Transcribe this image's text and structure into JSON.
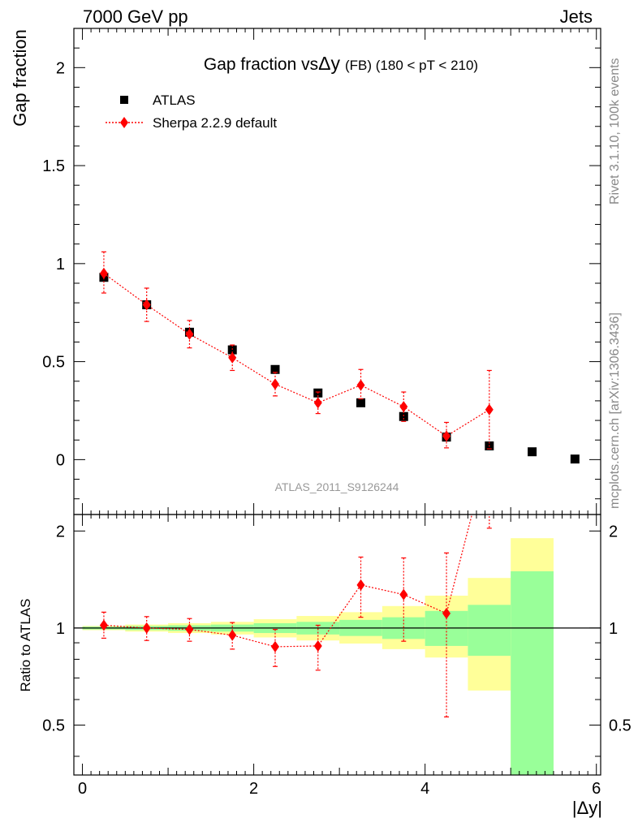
{
  "header": {
    "left": "7000 GeV pp",
    "right": "Jets"
  },
  "title": {
    "main": "Gap fraction vs",
    "delta_y": "Δy",
    "sub": "(FB) (180 < pT < 210)"
  },
  "side_labels": {
    "rivet": "Rivet 3.1.10,  100k events",
    "mcplots": "mcplots.cern.ch [arXiv:1306.3436]"
  },
  "watermark": "ATLAS_2011_S9126244",
  "legend": {
    "position": "top-left",
    "atlas": "ATLAS",
    "sherpa": "Sherpa 2.2.9 default"
  },
  "colors": {
    "sherpa": "#ff0000",
    "atlas": "#000000",
    "band_inner": "#99ff99",
    "band_outer": "#ffff99"
  },
  "chart_data": [
    {
      "type": "scatter",
      "panel": "main",
      "ylabel": "Gap fraction",
      "xlim": [
        -0.1,
        6.05
      ],
      "ylim": [
        -0.28,
        2.2
      ],
      "yticks": [
        "0",
        "0.5",
        "1",
        "1.5",
        "2"
      ],
      "series": [
        {
          "name": "ATLAS",
          "x": [
            0.25,
            0.75,
            1.25,
            1.75,
            2.25,
            2.75,
            3.25,
            3.75,
            4.25,
            4.75,
            5.25,
            5.75
          ],
          "y": [
            0.93,
            0.79,
            0.65,
            0.56,
            0.46,
            0.34,
            0.29,
            0.22,
            0.115,
            0.07,
            0.04,
            0.003
          ]
        },
        {
          "name": "Sherpa 2.2.9 default",
          "x": [
            0.25,
            0.75,
            1.25,
            1.75,
            2.25,
            2.75,
            3.25,
            3.75,
            4.25,
            4.75
          ],
          "y": [
            0.95,
            0.79,
            0.64,
            0.52,
            0.385,
            0.29,
            0.38,
            0.27,
            0.12,
            0.255
          ],
          "err_low": [
            0.1,
            0.085,
            0.07,
            0.065,
            0.06,
            0.055,
            0.07,
            0.075,
            0.06,
            0.2
          ],
          "err_high": [
            0.11,
            0.085,
            0.07,
            0.065,
            0.06,
            0.055,
            0.08,
            0.075,
            0.07,
            0.2
          ]
        }
      ]
    },
    {
      "type": "line",
      "panel": "ratio",
      "ylabel": "Ratio to ATLAS",
      "xlabel": "|Δy|",
      "xlim": [
        -0.1,
        6.05
      ],
      "ylim": [
        0.35,
        2.25
      ],
      "yticks": [
        "0.5",
        "1",
        "2"
      ],
      "xticks": [
        "0",
        "2",
        "4",
        "6"
      ],
      "bands": {
        "edges": [
          0,
          0.5,
          1.0,
          1.5,
          2.0,
          2.5,
          3.0,
          3.5,
          4.0,
          4.5,
          5.0,
          5.5
        ],
        "inner_low": [
          0.99,
          0.985,
          0.98,
          0.975,
          0.965,
          0.955,
          0.945,
          0.925,
          0.88,
          0.82,
          0.3,
          0.3
        ],
        "inner_high": [
          1.01,
          1.015,
          1.02,
          1.025,
          1.035,
          1.045,
          1.06,
          1.08,
          1.13,
          1.18,
          1.5,
          2.5
        ],
        "outer_low": [
          0.985,
          0.975,
          0.965,
          0.955,
          0.935,
          0.915,
          0.895,
          0.86,
          0.81,
          0.64,
          0.3,
          0.3
        ],
        "outer_high": [
          1.015,
          1.025,
          1.035,
          1.045,
          1.065,
          1.09,
          1.12,
          1.17,
          1.26,
          1.43,
          1.9,
          2.5
        ]
      },
      "series": [
        {
          "name": "Sherpa 2.2.9 default",
          "x": [
            0.25,
            0.75,
            1.25,
            1.75,
            2.25,
            2.75,
            3.25,
            3.75,
            4.25,
            4.75
          ],
          "y": [
            1.02,
            1.0,
            0.99,
            0.95,
            0.875,
            0.88,
            1.36,
            1.27,
            1.11,
            3.64
          ],
          "err_low": [
            0.09,
            0.085,
            0.08,
            0.09,
            0.115,
            0.14,
            0.28,
            0.36,
            0.58,
            1.6
          ],
          "err_high": [
            0.1,
            0.085,
            0.08,
            0.09,
            0.115,
            0.14,
            0.3,
            0.38,
            0.6,
            1.6
          ]
        }
      ]
    }
  ]
}
